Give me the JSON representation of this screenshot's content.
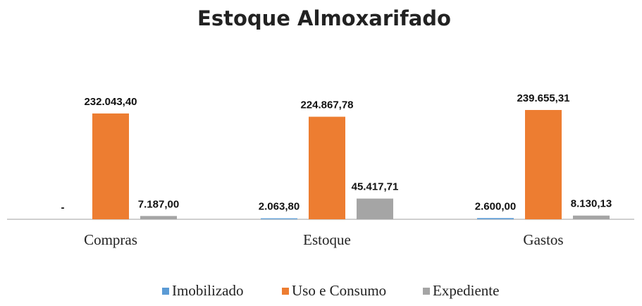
{
  "chart_data": {
    "type": "bar",
    "title": "Estoque Almoxarifado",
    "categories": [
      "Compras",
      "Estoque",
      "Gastos"
    ],
    "series": [
      {
        "name": "Imobilizado",
        "color": "#5b9bd5",
        "values": [
          0,
          2063.8,
          2600.0
        ],
        "value_labels": [
          "-",
          "2.063,80",
          "2.600,00"
        ]
      },
      {
        "name": "Uso e Consumo",
        "color": "#ed7d31",
        "values": [
          232043.4,
          224867.78,
          239655.31
        ],
        "value_labels": [
          "232.043,40",
          "224.867,78",
          "239.655,31"
        ]
      },
      {
        "name": "Expediente",
        "color": "#a5a5a5",
        "values": [
          7187.0,
          45417.71,
          8130.13
        ],
        "value_labels": [
          "7.187,00",
          "45.417,71",
          "8.130,13"
        ]
      }
    ],
    "legend": "bottom"
  }
}
